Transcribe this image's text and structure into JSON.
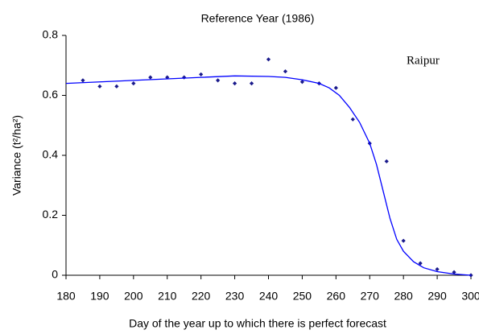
{
  "chart_data": {
    "type": "scatter",
    "title": "Reference Year (1986)",
    "x_label": "Day of the year up to which there is perfect forecast",
    "y_label": "Variance (t²/ha²)",
    "annotation": "Raipur",
    "xlim": [
      180,
      300
    ],
    "xticks": [
      180,
      190,
      200,
      210,
      220,
      230,
      240,
      250,
      260,
      270,
      280,
      290,
      300
    ],
    "ylim": [
      0,
      0.8
    ],
    "yticks": [
      0,
      0.2,
      0.4,
      0.6,
      0.8
    ],
    "grid": false,
    "series": [
      {
        "mode": "markers",
        "color": "#1a1a8c",
        "x": [
          185,
          190,
          195,
          200,
          205,
          210,
          215,
          220,
          225,
          230,
          235,
          240,
          245,
          250,
          255,
          260,
          265,
          270,
          275,
          280,
          285,
          290,
          295,
          300
        ],
        "values": [
          0.65,
          0.63,
          0.63,
          0.64,
          0.66,
          0.66,
          0.66,
          0.67,
          0.65,
          0.64,
          0.64,
          0.72,
          0.68,
          0.645,
          0.64,
          0.625,
          0.52,
          0.44,
          0.38,
          0.115,
          0.04,
          0.02,
          0.01,
          0
        ]
      },
      {
        "mode": "line",
        "color": "#0000ff",
        "x": [
          180,
          190,
          200,
          210,
          220,
          230,
          240,
          245,
          250,
          255,
          258,
          261,
          264,
          267,
          270,
          272,
          274,
          276,
          278,
          280,
          283,
          286,
          290,
          295,
          300
        ],
        "values": [
          0.64,
          0.645,
          0.65,
          0.655,
          0.66,
          0.665,
          0.663,
          0.66,
          0.652,
          0.64,
          0.625,
          0.6,
          0.56,
          0.51,
          0.44,
          0.37,
          0.28,
          0.19,
          0.12,
          0.08,
          0.045,
          0.025,
          0.012,
          0.004,
          0
        ]
      }
    ]
  }
}
